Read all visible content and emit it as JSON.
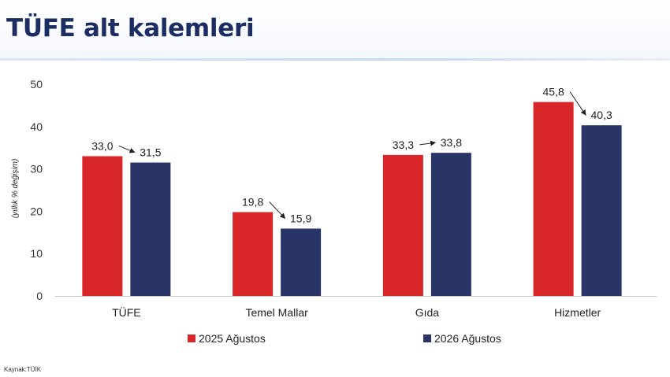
{
  "page": {
    "title": "TÜFE alt kalemleri",
    "source": "Kaynak:TÜİK"
  },
  "chart_data": {
    "type": "bar",
    "title": "",
    "xlabel": "",
    "ylabel": "(yıllık % değişim)",
    "ylim": [
      0,
      50
    ],
    "yticks": [
      0,
      10,
      20,
      30,
      40,
      50
    ],
    "categories": [
      "TÜFE",
      "Temel Mallar",
      "Gıda",
      "Hizmetler"
    ],
    "series": [
      {
        "name": "2025 Ağustos",
        "values": [
          33.0,
          19.8,
          33.3,
          45.8
        ],
        "labels": [
          "33,0",
          "19,8",
          "33,3",
          "45,8"
        ],
        "color": "#d92628"
      },
      {
        "name": "2026 Ağustos",
        "values": [
          31.5,
          15.9,
          33.8,
          40.3
        ],
        "labels": [
          "31,5",
          "15,9",
          "33,8",
          "40,3"
        ],
        "color": "#283566"
      }
    ],
    "annotations": "arrows from each 2025 value label to the 2026 value label",
    "legend": "bottom",
    "grid": false
  }
}
